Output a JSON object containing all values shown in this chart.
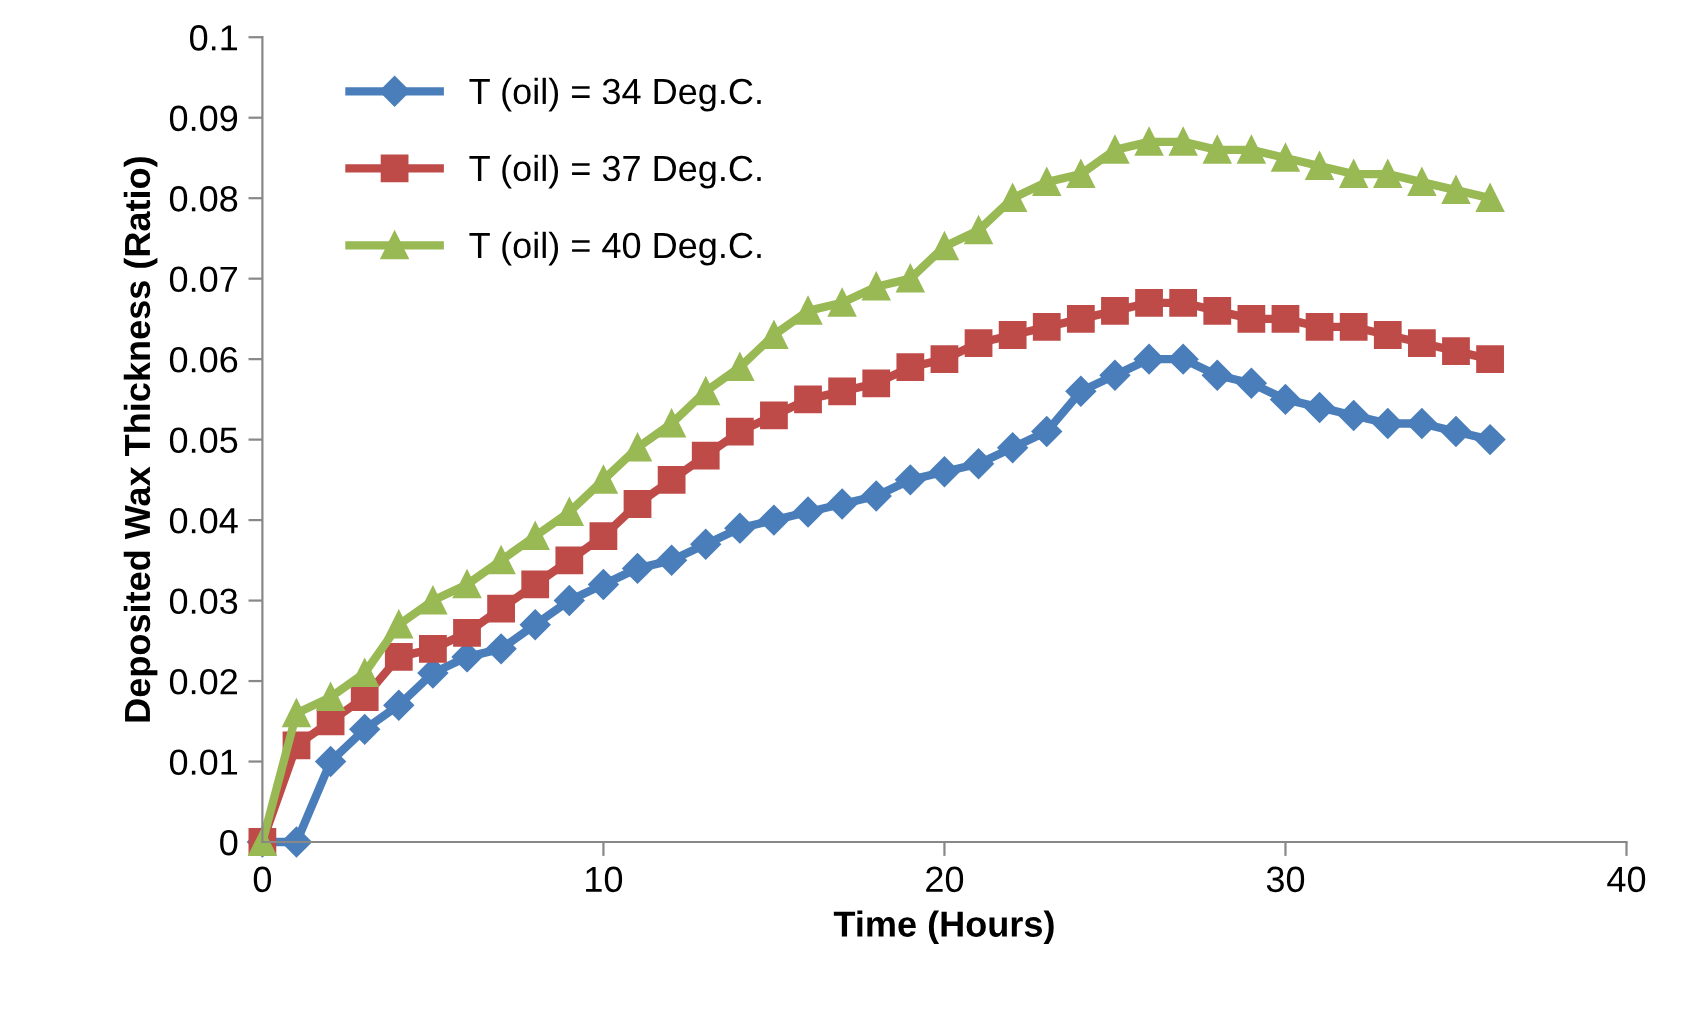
{
  "chart_data": {
    "type": "line",
    "xlabel": "Time (Hours)",
    "ylabel": "Deposited Wax Thickness (Ratio)",
    "x": [
      0,
      1,
      2,
      3,
      4,
      5,
      6,
      7,
      8,
      9,
      10,
      11,
      12,
      13,
      14,
      15,
      16,
      17,
      18,
      19,
      20,
      21,
      22,
      23,
      24,
      25,
      26,
      27,
      28,
      29,
      30,
      31,
      32,
      33,
      34,
      35,
      36
    ],
    "series": [
      {
        "name": "T (oil) = 34 Deg.C.",
        "color": "#4a7ebb",
        "marker": "diamond",
        "values": [
          0,
          0,
          0.01,
          0.014,
          0.017,
          0.021,
          0.023,
          0.024,
          0.027,
          0.03,
          0.032,
          0.034,
          0.035,
          0.037,
          0.039,
          0.04,
          0.041,
          0.042,
          0.043,
          0.045,
          0.046,
          0.047,
          0.049,
          0.051,
          0.056,
          0.058,
          0.06,
          0.06,
          0.058,
          0.057,
          0.055,
          0.054,
          0.053,
          0.052,
          0.052,
          0.051,
          0.05
        ]
      },
      {
        "name": "T (oil) = 37 Deg.C.",
        "color": "#be4b48",
        "marker": "square",
        "values": [
          0,
          0.012,
          0.015,
          0.018,
          0.023,
          0.024,
          0.026,
          0.029,
          0.032,
          0.035,
          0.038,
          0.042,
          0.045,
          0.048,
          0.051,
          0.053,
          0.055,
          0.056,
          0.057,
          0.059,
          0.06,
          0.062,
          0.063,
          0.064,
          0.065,
          0.066,
          0.067,
          0.067,
          0.066,
          0.065,
          0.065,
          0.064,
          0.064,
          0.063,
          0.062,
          0.061,
          0.06
        ]
      },
      {
        "name": "T (oil) = 40 Deg.C.",
        "color": "#98b954",
        "marker": "triangle",
        "values": [
          0,
          0.016,
          0.018,
          0.021,
          0.027,
          0.03,
          0.032,
          0.035,
          0.038,
          0.041,
          0.045,
          0.049,
          0.052,
          0.056,
          0.059,
          0.063,
          0.066,
          0.067,
          0.069,
          0.07,
          0.074,
          0.076,
          0.08,
          0.082,
          0.083,
          0.086,
          0.087,
          0.087,
          0.086,
          0.086,
          0.085,
          0.084,
          0.083,
          0.083,
          0.082,
          0.081,
          0.08
        ]
      }
    ],
    "xlim": [
      0,
      40
    ],
    "xticks": [
      0,
      10,
      20,
      30,
      40
    ],
    "ylim": [
      0,
      0.1
    ],
    "yticks": [
      {
        "value": 0,
        "label": "0"
      },
      0.01,
      0.02,
      0.03,
      0.04,
      0.05,
      0.06,
      0.07,
      0.08,
      0.09,
      0.1
    ],
    "grid": false,
    "legend": "top left",
    "line_style": "solid"
  }
}
